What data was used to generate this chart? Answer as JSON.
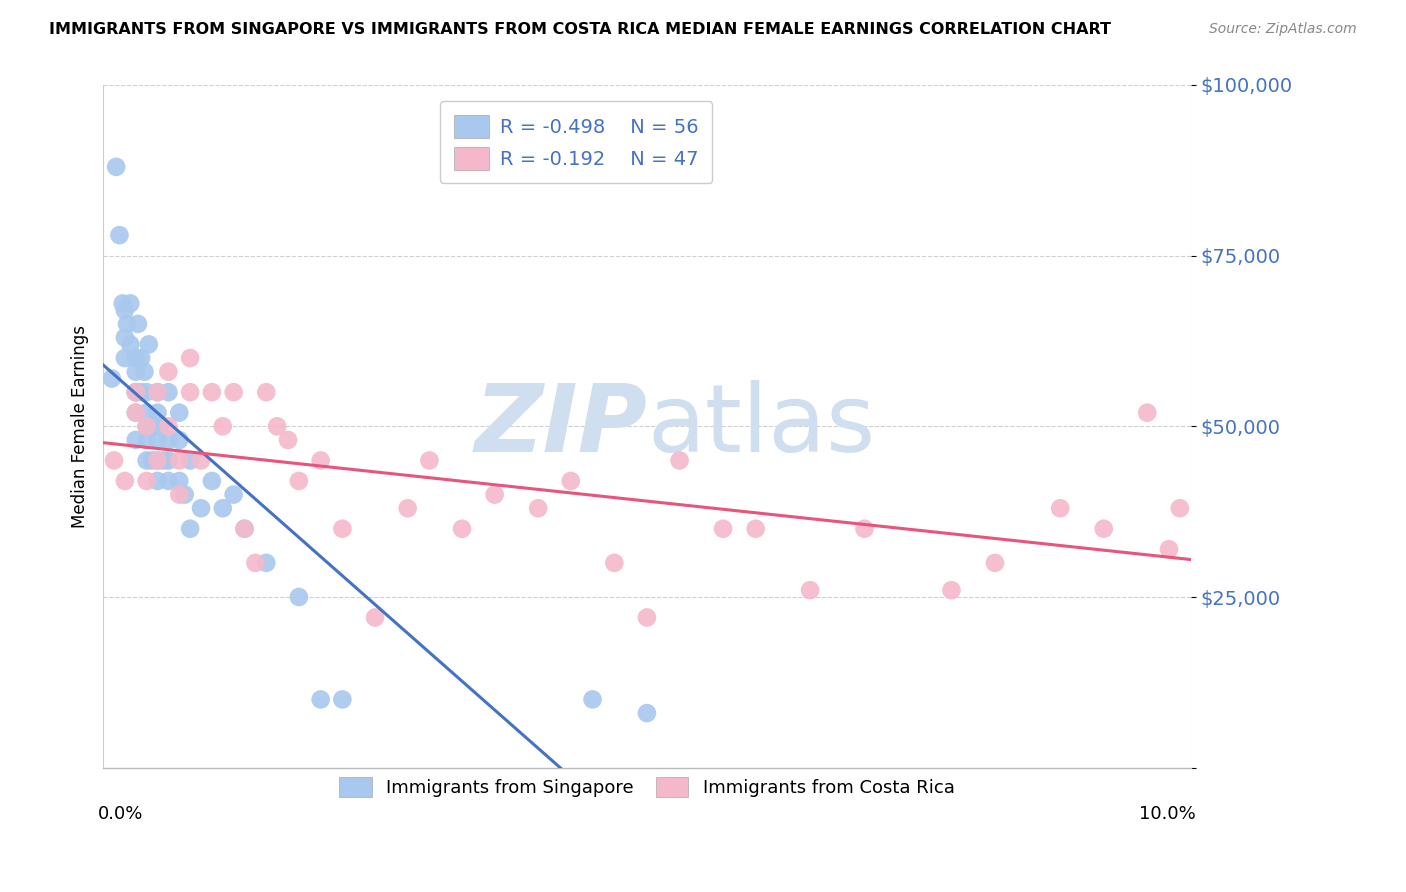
{
  "title": "IMMIGRANTS FROM SINGAPORE VS IMMIGRANTS FROM COSTA RICA MEDIAN FEMALE EARNINGS CORRELATION CHART",
  "source": "Source: ZipAtlas.com",
  "ylabel": "Median Female Earnings",
  "ytick_vals": [
    0,
    25000,
    50000,
    75000,
    100000
  ],
  "ytick_labels": [
    "",
    "$25,000",
    "$50,000",
    "$75,000",
    "$100,000"
  ],
  "xlim": [
    0.0,
    0.1
  ],
  "ylim": [
    0,
    100000
  ],
  "singapore_color": "#a8c8ee",
  "costa_rica_color": "#f5b8ca",
  "singapore_line_color": "#4472c4",
  "costa_rica_line_color": "#e8547a",
  "singapore_R": -0.498,
  "singapore_N": 56,
  "costa_rica_R": -0.192,
  "costa_rica_N": 47,
  "watermark_color": "#d0dff0",
  "sg_x": [
    0.0008,
    0.0012,
    0.0015,
    0.0018,
    0.002,
    0.002,
    0.002,
    0.0022,
    0.0025,
    0.0025,
    0.003,
    0.003,
    0.003,
    0.003,
    0.003,
    0.003,
    0.0032,
    0.0035,
    0.0035,
    0.0038,
    0.004,
    0.004,
    0.004,
    0.004,
    0.004,
    0.0042,
    0.0045,
    0.0045,
    0.005,
    0.005,
    0.005,
    0.005,
    0.005,
    0.0052,
    0.0055,
    0.006,
    0.006,
    0.006,
    0.006,
    0.007,
    0.007,
    0.007,
    0.0075,
    0.008,
    0.008,
    0.009,
    0.01,
    0.011,
    0.012,
    0.013,
    0.015,
    0.018,
    0.02,
    0.022,
    0.045,
    0.05
  ],
  "sg_y": [
    57000,
    88000,
    78000,
    68000,
    67000,
    63000,
    60000,
    65000,
    62000,
    68000,
    58000,
    60000,
    55000,
    55000,
    52000,
    48000,
    65000,
    60000,
    55000,
    58000,
    55000,
    52000,
    50000,
    48000,
    45000,
    62000,
    50000,
    45000,
    55000,
    52000,
    48000,
    45000,
    42000,
    50000,
    45000,
    55000,
    48000,
    45000,
    42000,
    52000,
    48000,
    42000,
    40000,
    45000,
    35000,
    38000,
    42000,
    38000,
    40000,
    35000,
    30000,
    25000,
    10000,
    10000,
    10000,
    8000
  ],
  "cr_x": [
    0.001,
    0.002,
    0.003,
    0.003,
    0.004,
    0.004,
    0.005,
    0.005,
    0.006,
    0.006,
    0.007,
    0.007,
    0.008,
    0.008,
    0.009,
    0.01,
    0.011,
    0.012,
    0.013,
    0.014,
    0.015,
    0.016,
    0.017,
    0.018,
    0.02,
    0.022,
    0.025,
    0.028,
    0.03,
    0.033,
    0.036,
    0.04,
    0.043,
    0.047,
    0.05,
    0.053,
    0.057,
    0.06,
    0.065,
    0.07,
    0.078,
    0.082,
    0.088,
    0.092,
    0.096,
    0.098,
    0.099
  ],
  "cr_y": [
    45000,
    42000,
    55000,
    52000,
    50000,
    42000,
    55000,
    45000,
    58000,
    50000,
    45000,
    40000,
    60000,
    55000,
    45000,
    55000,
    50000,
    55000,
    35000,
    30000,
    55000,
    50000,
    48000,
    42000,
    45000,
    35000,
    22000,
    38000,
    45000,
    35000,
    40000,
    38000,
    42000,
    30000,
    22000,
    45000,
    35000,
    35000,
    26000,
    35000,
    26000,
    30000,
    38000,
    35000,
    52000,
    32000,
    38000
  ]
}
